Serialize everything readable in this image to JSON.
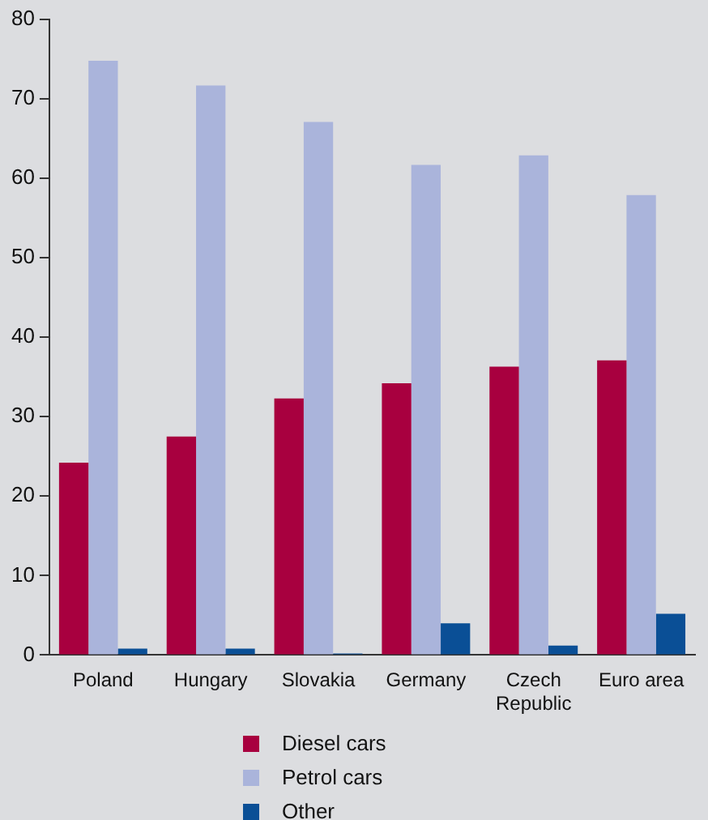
{
  "chart_data": {
    "type": "bar",
    "categories": [
      "Poland",
      "Hungary",
      "Slovakia",
      "Germany",
      "Czech Republic",
      "Euro area"
    ],
    "series": [
      {
        "name": "Diesel cars",
        "color": "#a8003f",
        "values": [
          24.2,
          27.5,
          32.3,
          34.2,
          36.3,
          37.1
        ]
      },
      {
        "name": "Petrol cars",
        "color": "#aab4db",
        "values": [
          74.8,
          71.7,
          67.1,
          61.7,
          62.9,
          57.9
        ]
      },
      {
        "name": "Other",
        "color": "#0a4f96",
        "values": [
          0.8,
          0.8,
          0.2,
          4.0,
          1.2,
          5.2
        ]
      }
    ],
    "ylim": [
      0,
      80
    ],
    "yticks": [
      0,
      10,
      20,
      30,
      40,
      50,
      60,
      70,
      80
    ],
    "grid": false,
    "legend": "bottom"
  }
}
